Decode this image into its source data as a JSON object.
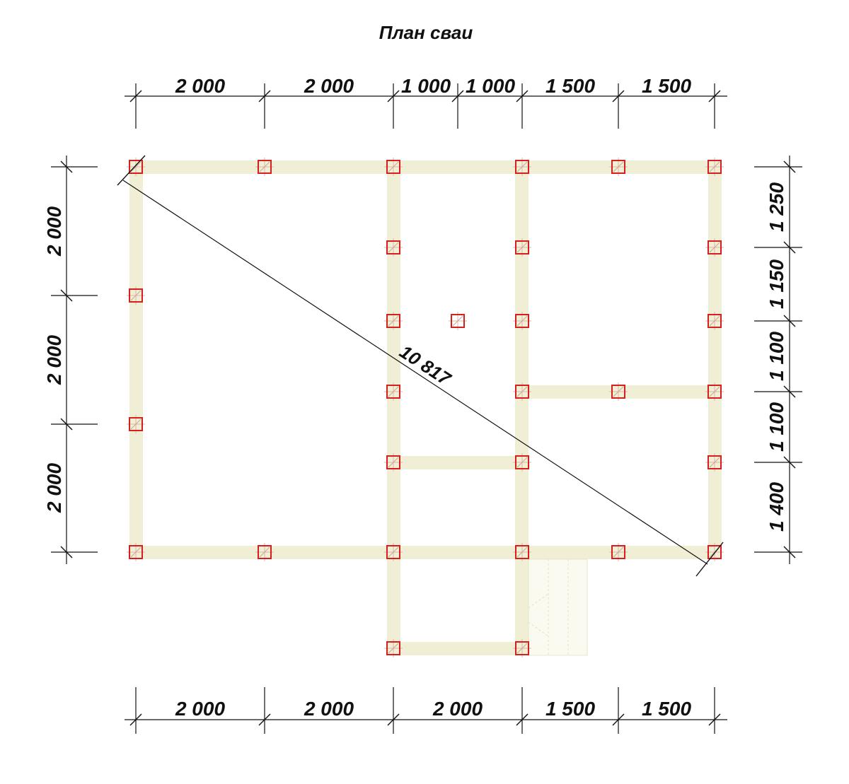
{
  "title": "План сваи",
  "diagonal": {
    "label": "10 817"
  },
  "dimensions": {
    "top": [
      "2 000",
      "2 000",
      "1 000",
      "1 000",
      "1 500",
      "1 500"
    ],
    "bottom": [
      "2 000",
      "2 000",
      "2 000",
      "1 500",
      "1 500"
    ],
    "left": [
      "2 000",
      "2 000",
      "2 000"
    ],
    "right": [
      "1 250",
      "1 150",
      "1 100",
      "1 100",
      "1 400"
    ]
  },
  "colors": {
    "beam": "#f1eed6",
    "pile_outline": "#d62020",
    "lines": "#111111"
  }
}
